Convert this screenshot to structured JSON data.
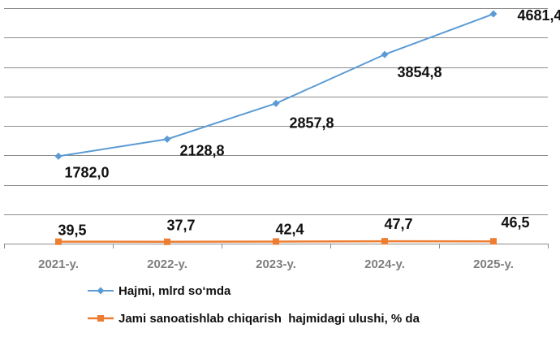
{
  "chart_data": {
    "type": "line",
    "title": "",
    "xlabel": "",
    "ylabel": "",
    "categories": [
      "2021-y.",
      "2022-y.",
      "2023-y.",
      "2024-y.",
      "2025-y."
    ],
    "ylim": [
      0,
      4800
    ],
    "grid": true,
    "legend_position": "bottom",
    "series": [
      {
        "name": "Hajmi, mlrd so‘mda",
        "values": [
          1782.0,
          2128.8,
          2857.8,
          3854.8,
          4681.4
        ],
        "labels": [
          "1782,0",
          "2128,8",
          "2857,8",
          "3854,8",
          "4681,4"
        ],
        "color": "#5b9bd5",
        "marker": "diamond"
      },
      {
        "name": "Jami sanoatishlab chiqarish  hajmidagi ulushi, % da",
        "values": [
          39.5,
          37.7,
          42.4,
          47.7,
          46.5
        ],
        "labels": [
          "39,5",
          "37,7",
          "42,4",
          "47,7",
          "46,5"
        ],
        "color": "#ed7d31",
        "marker": "square"
      }
    ]
  }
}
